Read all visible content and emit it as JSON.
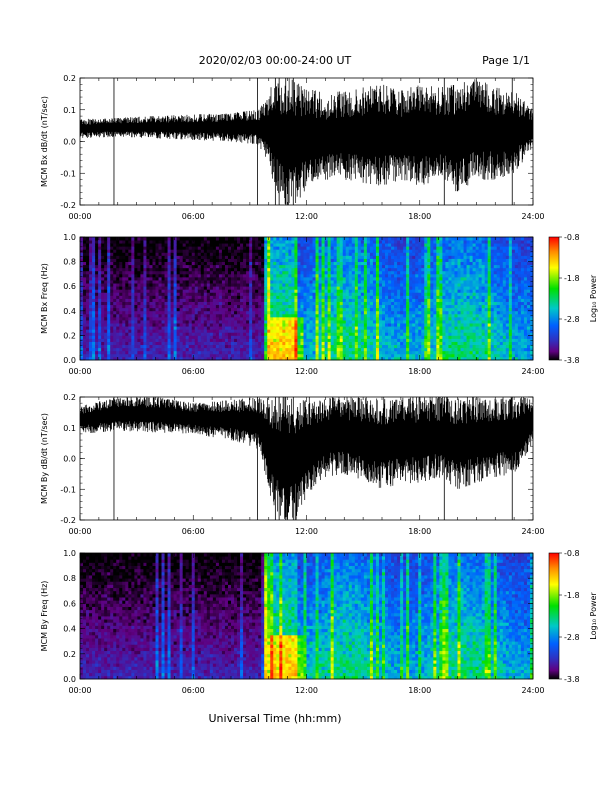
{
  "header": {
    "title": "2020/02/03  00:00-24:00 UT",
    "page": "Page 1/1"
  },
  "colorbar": {
    "label": "Log₁₀ Power",
    "tick_labels": [
      "-0.8",
      "-1.8",
      "-2.8",
      "-3.8"
    ],
    "colors": [
      "#ff0000",
      "#ff8c00",
      "#ffff00",
      "#00e000",
      "#00c8c8",
      "#0060ff",
      "#3030c0",
      "#600080",
      "#000000"
    ]
  },
  "xlabel": "Universal Time (hh:mm)",
  "x_tick_labels": [
    "00:00",
    "06:00",
    "12:00",
    "18:00",
    "24:00"
  ],
  "chart_data": [
    {
      "type": "line",
      "ylabel": "MCM Bx dB/dt (nT/sec)",
      "xlim": [
        0,
        24
      ],
      "ylim": [
        -0.2,
        0.2
      ],
      "y_tick_labels": [
        "0.2",
        "0.1",
        "0.0",
        "-0.1",
        "-0.2"
      ],
      "envelope": {
        "x": [
          0,
          2,
          4,
          6,
          8,
          9.5,
          10.2,
          10.8,
          11.5,
          12,
          13,
          14,
          15,
          16,
          17,
          18,
          19,
          20,
          21,
          22,
          23,
          24
        ],
        "y_min": [
          0.01,
          0.015,
          0.01,
          0.005,
          0.0,
          -0.01,
          -0.12,
          -0.2,
          -0.2,
          -0.15,
          -0.12,
          -0.12,
          -0.13,
          -0.14,
          -0.12,
          -0.14,
          -0.12,
          -0.16,
          -0.12,
          -0.12,
          -0.1,
          -0.02
        ],
        "y_max": [
          0.07,
          0.075,
          0.08,
          0.085,
          0.09,
          0.1,
          0.18,
          0.2,
          0.2,
          0.17,
          0.15,
          0.16,
          0.17,
          0.18,
          0.16,
          0.18,
          0.17,
          0.18,
          0.2,
          0.17,
          0.16,
          0.1
        ]
      }
    },
    {
      "type": "heatmap",
      "ylabel": "MCM Bx Freq (Hz)",
      "xlim": [
        0,
        24
      ],
      "ylim": [
        0.0,
        1.0
      ],
      "y_tick_labels": [
        "1.0",
        "0.8",
        "0.6",
        "0.4",
        "0.2",
        "0.0"
      ],
      "zlabel": "Log₁₀ Power",
      "zlim": [
        -3.8,
        -0.8
      ]
    },
    {
      "type": "line",
      "ylabel": "MCM By dB/dt (nT/sec)",
      "xlim": [
        0,
        24
      ],
      "ylim": [
        -0.2,
        0.2
      ],
      "y_tick_labels": [
        "0.2",
        "0.1",
        "0.0",
        "-0.1",
        "-0.2"
      ],
      "envelope": {
        "x": [
          0,
          2,
          4,
          6,
          8,
          9.5,
          10.2,
          10.8,
          11.5,
          12,
          13,
          14,
          15,
          16,
          17,
          18,
          19,
          20,
          21,
          22,
          23,
          24
        ],
        "y_min": [
          0.08,
          0.09,
          0.085,
          0.08,
          0.06,
          0.03,
          -0.15,
          -0.2,
          -0.2,
          -0.12,
          -0.06,
          -0.05,
          -0.07,
          -0.1,
          -0.08,
          -0.08,
          -0.06,
          -0.1,
          -0.08,
          -0.06,
          -0.05,
          0.05
        ],
        "y_max": [
          0.17,
          0.2,
          0.2,
          0.18,
          0.19,
          0.2,
          0.2,
          0.2,
          0.2,
          0.2,
          0.2,
          0.2,
          0.2,
          0.2,
          0.2,
          0.2,
          0.2,
          0.2,
          0.2,
          0.2,
          0.2,
          0.2
        ]
      }
    },
    {
      "type": "heatmap",
      "ylabel": "MCM By Freq (Hz)",
      "xlim": [
        0,
        24
      ],
      "ylim": [
        0.0,
        1.0
      ],
      "y_tick_labels": [
        "1.0",
        "0.8",
        "0.6",
        "0.4",
        "0.2",
        "0.0"
      ],
      "zlabel": "Log₁₀ Power",
      "zlim": [
        -3.8,
        -0.8
      ]
    }
  ]
}
